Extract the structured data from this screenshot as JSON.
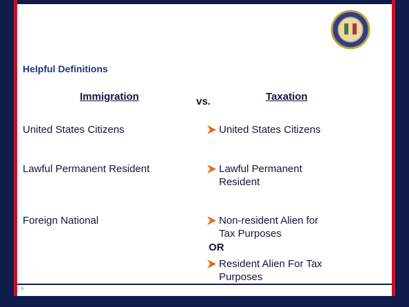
{
  "header": {
    "title": "Helpful Definitions"
  },
  "columns": [
    "Immigration",
    "vs.",
    "Taxation"
  ],
  "rows": [
    {
      "immigration": "United States Citizens",
      "taxation": [
        [
          "United States Citizens"
        ]
      ]
    },
    {
      "immigration": "Lawful Permanent Resident",
      "taxation": [
        [
          "Lawful Permanent",
          "Resident"
        ]
      ]
    },
    {
      "immigration": "Foreign National",
      "taxation": [
        [
          "Non-resident Alien for",
          "Tax Purposes"
        ],
        [
          "Resident Alien For Tax",
          "Purposes"
        ]
      ],
      "connector": "OR"
    }
  ]
}
